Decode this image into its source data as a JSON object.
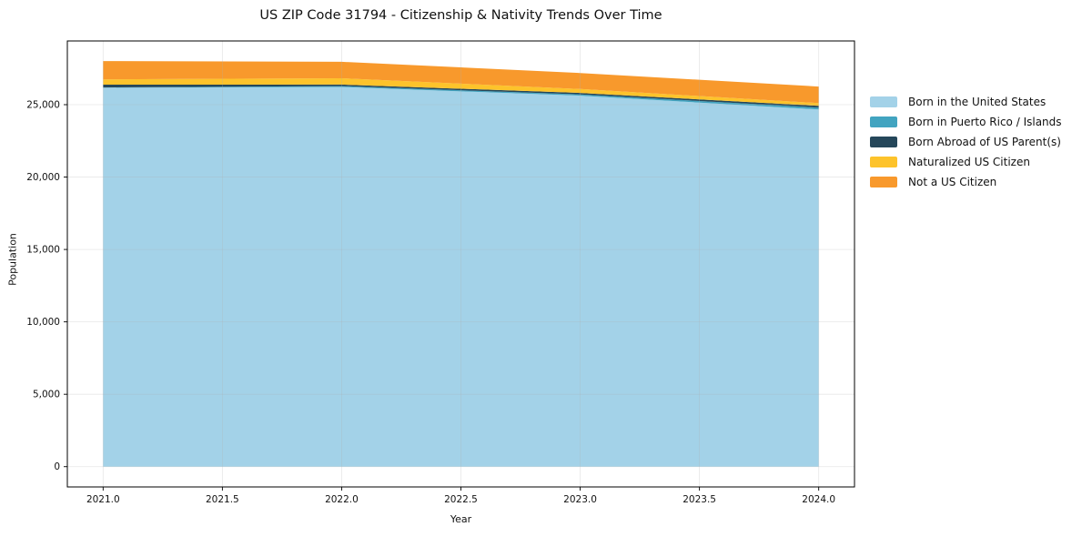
{
  "chart_data": {
    "type": "area",
    "stacked": true,
    "title": "US ZIP Code 31794 - Citizenship & Nativity Trends Over Time",
    "xlabel": "Year",
    "ylabel": "Population",
    "x": [
      2021,
      2022,
      2023,
      2024
    ],
    "series": [
      {
        "name": "Born in the United States",
        "color": "#A3D2E8",
        "values": [
          26170,
          26220,
          25620,
          24670
        ]
      },
      {
        "name": "Born in Puerto Rico / Islands",
        "color": "#42A4C0",
        "values": [
          20,
          60,
          90,
          130
        ]
      },
      {
        "name": "Born Abroad of US Parent(s)",
        "color": "#25475A",
        "values": [
          190,
          110,
          100,
          120
        ]
      },
      {
        "name": "Naturalized US Citizen",
        "color": "#FDC32B",
        "values": [
          370,
          430,
          270,
          190
        ]
      },
      {
        "name": "Not a US Citizen",
        "color": "#F8992C",
        "values": [
          1260,
          1140,
          1110,
          1140
        ]
      }
    ],
    "totals": [
      28010,
      27960,
      27190,
      26250
    ],
    "xlim": [
      2020.85,
      2024.15
    ],
    "ylim": [
      -1400,
      29400
    ],
    "xticks": [
      2021.0,
      2021.5,
      2022.0,
      2022.5,
      2023.0,
      2023.5,
      2024.0
    ],
    "xtick_labels": [
      "2021.0",
      "2021.5",
      "2022.0",
      "2022.5",
      "2023.0",
      "2023.5",
      "2024.0"
    ],
    "yticks": [
      0,
      5000,
      10000,
      15000,
      20000,
      25000
    ],
    "ytick_labels": [
      "0",
      "5,000",
      "10,000",
      "15,000",
      "20,000",
      "25,000"
    ],
    "grid": true,
    "legend_position": "right",
    "grid_color": "#b0b0b0",
    "frame_color": "#000000",
    "text_color": "#111111"
  }
}
